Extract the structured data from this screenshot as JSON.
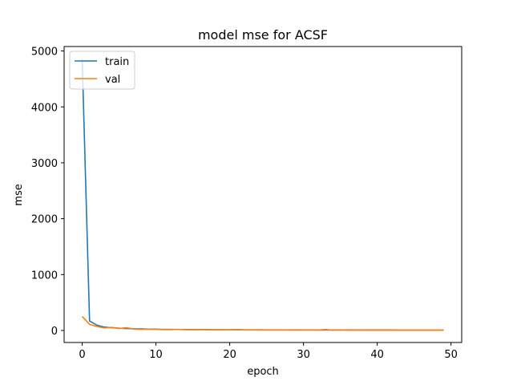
{
  "chart_data": {
    "type": "line",
    "title": "model mse for ACSF",
    "xlabel": "epoch",
    "ylabel": "mse",
    "xlim": [
      -2.45,
      51.45
    ],
    "ylim": [
      -215,
      5080
    ],
    "xticks": [
      0,
      10,
      20,
      30,
      40,
      50
    ],
    "yticks": [
      0,
      1000,
      2000,
      3000,
      4000,
      5000
    ],
    "grid": false,
    "legend_position": "top-left",
    "x": [
      0,
      1,
      2,
      3,
      4,
      5,
      6,
      7,
      8,
      9,
      10,
      11,
      12,
      13,
      14,
      15,
      16,
      17,
      18,
      19,
      20,
      21,
      22,
      23,
      24,
      25,
      26,
      27,
      28,
      29,
      30,
      31,
      32,
      33,
      34,
      35,
      36,
      37,
      38,
      39,
      40,
      41,
      42,
      43,
      44,
      45,
      46,
      47,
      48,
      49
    ],
    "series": [
      {
        "name": "train",
        "color": "#1f77b4",
        "values": [
          4850,
          170,
          95,
          60,
          50,
          40,
          35,
          30,
          28,
          25,
          22,
          20,
          19,
          18,
          17,
          16,
          15,
          15,
          14,
          14,
          13,
          13,
          12,
          12,
          12,
          11,
          11,
          11,
          10,
          10,
          10,
          10,
          9,
          9,
          9,
          9,
          9,
          8,
          8,
          8,
          8,
          8,
          8,
          7,
          7,
          7,
          7,
          7,
          7,
          7
        ]
      },
      {
        "name": "val",
        "color": "#ff7f0e",
        "values": [
          250,
          110,
          70,
          45,
          55,
          35,
          50,
          25,
          20,
          25,
          20,
          15,
          15,
          20,
          15,
          12,
          18,
          12,
          10,
          10,
          12,
          18,
          10,
          10,
          8,
          8,
          8,
          8,
          8,
          6,
          8,
          8,
          8,
          18,
          5,
          12,
          5,
          6,
          5,
          5,
          5,
          5,
          5,
          5,
          5,
          5,
          5,
          5,
          5,
          5
        ]
      }
    ]
  }
}
